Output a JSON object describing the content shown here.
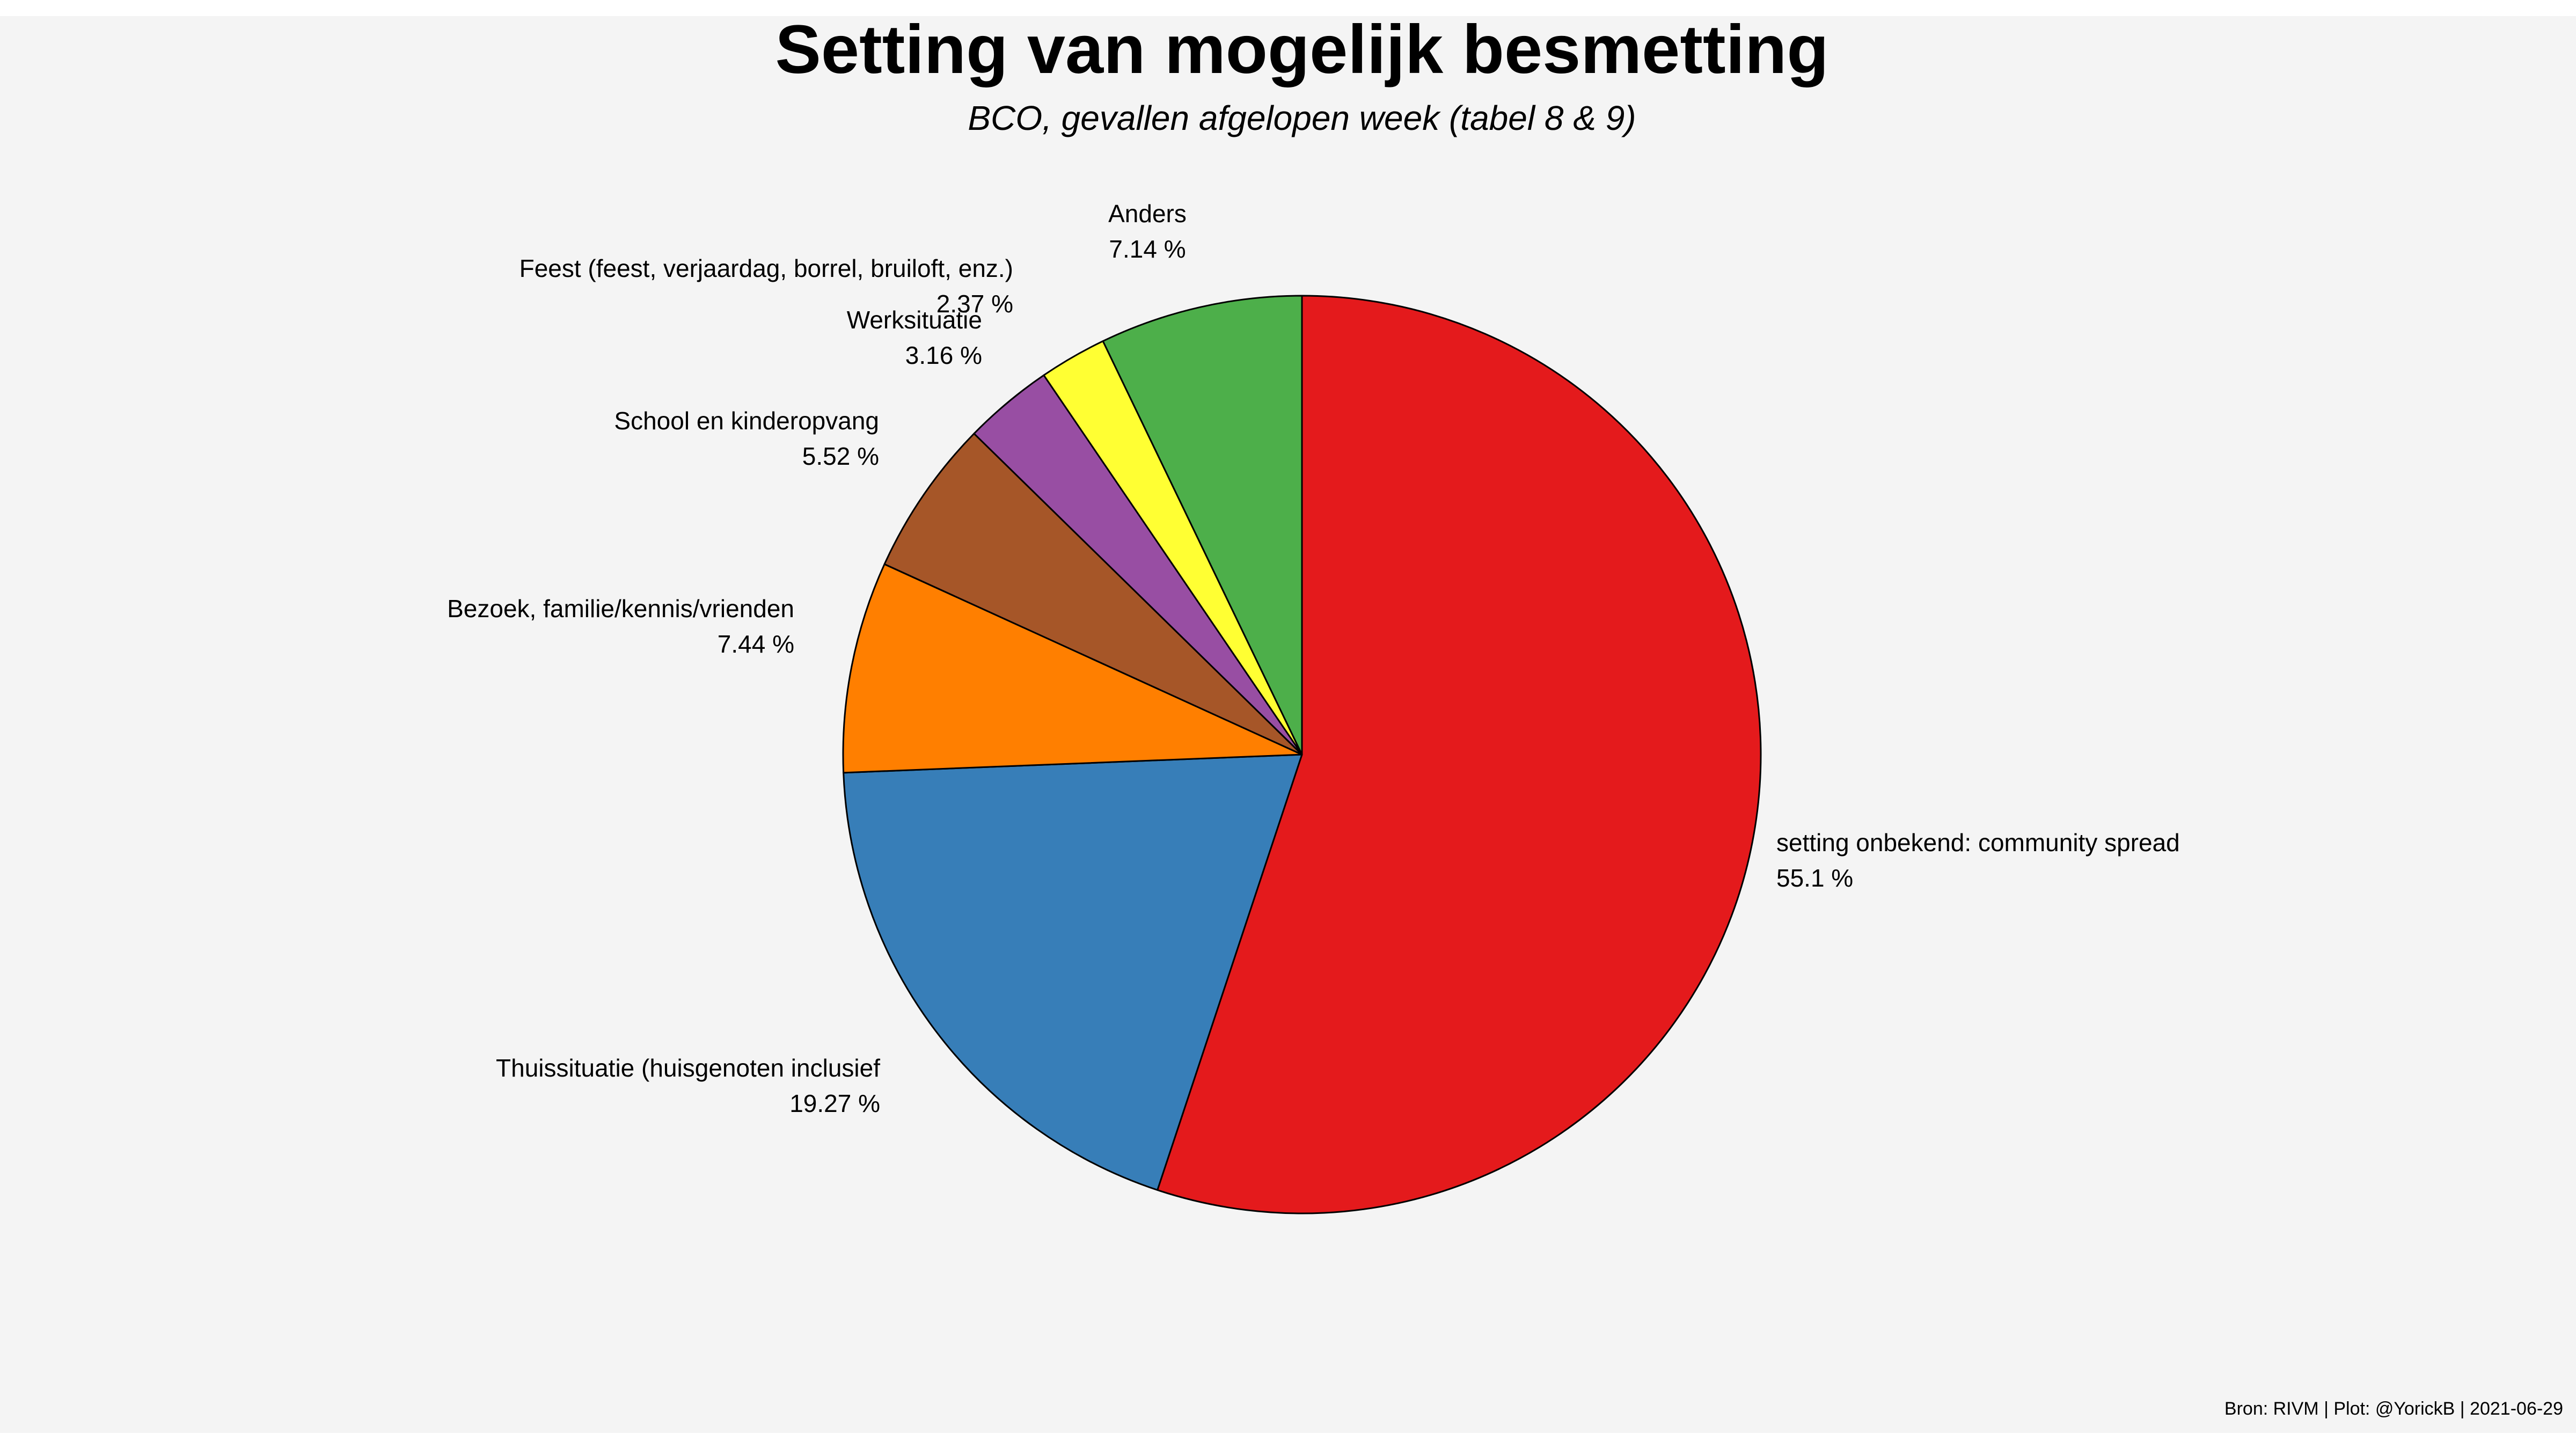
{
  "chart_data": {
    "type": "pie",
    "title": "Setting van mogelijk besmetting",
    "subtitle": "BCO, gevallen afgelopen week (tabel 8 & 9)",
    "caption": "Bron: RIVM | Plot: @YorickB |  2021-06-29",
    "slices": [
      {
        "label": "setting onbekend: community spread",
        "value": 55.1,
        "pct_label": "55.1 %",
        "color": "#e41a1c"
      },
      {
        "label": "Thuissituatie (huisgenoten inclusief",
        "value": 19.27,
        "pct_label": "19.27 %",
        "color": "#377eb8"
      },
      {
        "label": "Bezoek, familie/kennis/vrienden",
        "value": 7.44,
        "pct_label": "7.44 %",
        "color": "#ff7f00"
      },
      {
        "label": "School en kinderopvang",
        "value": 5.52,
        "pct_label": "5.52 %",
        "color": "#a65628"
      },
      {
        "label": "Werksituatie",
        "value": 3.16,
        "pct_label": "3.16 %",
        "color": "#984ea3"
      },
      {
        "label": "Feest (feest, verjaardag, borrel, bruiloft, enz.)",
        "value": 2.37,
        "pct_label": "2.37 %",
        "color": "#ffff33"
      },
      {
        "label": "Anders",
        "value": 7.14,
        "pct_label": "7.14 %",
        "color": "#4daf4a"
      }
    ],
    "background": "#f4f4f4",
    "legend": "none"
  }
}
